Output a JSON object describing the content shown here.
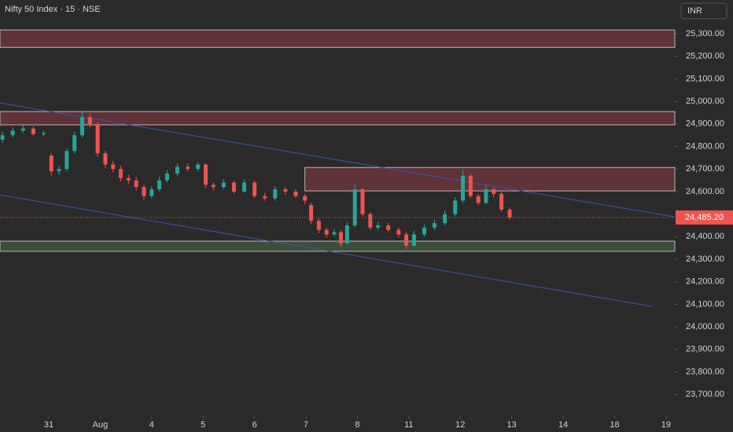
{
  "chart_data": {
    "type": "candlestick",
    "title": "Nifty 50 Index · 15 · NSE",
    "currency": "INR",
    "up_color": "#26a69a",
    "down_color": "#ef5350",
    "xlim": [
      -0.948,
      12.17
    ],
    "ylim": [
      23603,
      25450
    ],
    "xticks": [
      {
        "value": 0,
        "label": "31"
      },
      {
        "value": 1,
        "label": "Aug"
      },
      {
        "value": 2,
        "label": "4"
      },
      {
        "value": 3,
        "label": "5"
      },
      {
        "value": 4,
        "label": "6"
      },
      {
        "value": 5,
        "label": "7"
      },
      {
        "value": 6,
        "label": "8"
      },
      {
        "value": 7,
        "label": "11"
      },
      {
        "value": 8,
        "label": "12"
      },
      {
        "value": 9,
        "label": "13"
      },
      {
        "value": 10,
        "label": "14"
      },
      {
        "value": 11,
        "label": "18"
      },
      {
        "value": 12,
        "label": "19"
      }
    ],
    "yticks": [
      {
        "value": 23700,
        "label": "23,700.00"
      },
      {
        "value": 23800,
        "label": "23,800.00"
      },
      {
        "value": 23900,
        "label": "23,900.00"
      },
      {
        "value": 24000,
        "label": "24,000.00"
      },
      {
        "value": 24100,
        "label": "24,100.00"
      },
      {
        "value": 24200,
        "label": "24,200.00"
      },
      {
        "value": 24300,
        "label": "24,300.00"
      },
      {
        "value": 24400,
        "label": "24,400.00"
      },
      {
        "value": 24500,
        "label": "24,500.00"
      },
      {
        "value": 24600,
        "label": "24,600.00"
      },
      {
        "value": 24700,
        "label": "24,700.00"
      },
      {
        "value": 24800,
        "label": "24,800.00"
      },
      {
        "value": 24900,
        "label": "24,900.00"
      },
      {
        "value": 25000,
        "label": "25,000.00"
      },
      {
        "value": 25100,
        "label": "25,100.00"
      },
      {
        "value": 25200,
        "label": "25,200.00"
      },
      {
        "value": 25300,
        "label": "25,300.00"
      }
    ],
    "x": [
      -0.9,
      -0.7,
      -0.5,
      -0.3,
      -0.1,
      0.05,
      0.2,
      0.35,
      0.5,
      0.65,
      0.8,
      0.95,
      1.1,
      1.25,
      1.4,
      1.55,
      1.7,
      1.85,
      2.0,
      2.15,
      2.3,
      2.5,
      2.7,
      2.9,
      3.05,
      3.2,
      3.4,
      3.6,
      3.8,
      4.0,
      4.2,
      4.4,
      4.6,
      4.8,
      4.98,
      5.1,
      5.25,
      5.4,
      5.55,
      5.68,
      5.8,
      5.95,
      6.1,
      6.25,
      6.4,
      6.6,
      6.8,
      6.95,
      7.1,
      7.3,
      7.5,
      7.7,
      7.9,
      8.05,
      8.2,
      8.35,
      8.5,
      8.65,
      8.8,
      8.96
    ],
    "ohlc": [
      [
        24830,
        24865,
        24815,
        24850
      ],
      [
        24850,
        24885,
        24840,
        24870
      ],
      [
        24870,
        24895,
        24860,
        24880
      ],
      [
        24880,
        24890,
        24845,
        24855
      ],
      [
        24855,
        24870,
        24845,
        24860
      ],
      [
        24760,
        24770,
        24670,
        24690
      ],
      [
        24690,
        24715,
        24675,
        24700
      ],
      [
        24700,
        24790,
        24690,
        24780
      ],
      [
        24780,
        24865,
        24770,
        24850
      ],
      [
        24850,
        24955,
        24840,
        24930
      ],
      [
        24930,
        24945,
        24885,
        24900
      ],
      [
        24900,
        24910,
        24755,
        24770
      ],
      [
        24770,
        24780,
        24705,
        24720
      ],
      [
        24720,
        24735,
        24685,
        24700
      ],
      [
        24700,
        24715,
        24645,
        24660
      ],
      [
        24660,
        24675,
        24635,
        24650
      ],
      [
        24650,
        24665,
        24605,
        24620
      ],
      [
        24620,
        24630,
        24565,
        24580
      ],
      [
        24580,
        24625,
        24570,
        24610
      ],
      [
        24610,
        24665,
        24600,
        24650
      ],
      [
        24650,
        24695,
        24640,
        24680
      ],
      [
        24680,
        24725,
        24670,
        24710
      ],
      [
        24710,
        24725,
        24690,
        24700
      ],
      [
        24700,
        24730,
        24690,
        24720
      ],
      [
        24720,
        24725,
        24615,
        24630
      ],
      [
        24630,
        24640,
        24605,
        24620
      ],
      [
        24620,
        24655,
        24610,
        24640
      ],
      [
        24640,
        24650,
        24590,
        24600
      ],
      [
        24600,
        24655,
        24595,
        24640
      ],
      [
        24640,
        24650,
        24570,
        24580
      ],
      [
        24580,
        24595,
        24560,
        24570
      ],
      [
        24570,
        24625,
        24560,
        24610
      ],
      [
        24610,
        24620,
        24585,
        24600
      ],
      [
        24600,
        24610,
        24570,
        24580
      ],
      [
        24580,
        24590,
        24545,
        24560
      ],
      [
        24540,
        24550,
        24455,
        24470
      ],
      [
        24470,
        24480,
        24415,
        24430
      ],
      [
        24430,
        24440,
        24395,
        24410
      ],
      [
        24410,
        24435,
        24400,
        24420
      ],
      [
        24420,
        24430,
        24355,
        24370
      ],
      [
        24370,
        24465,
        24365,
        24450
      ],
      [
        24450,
        24630,
        24440,
        24610
      ],
      [
        24610,
        24615,
        24490,
        24500
      ],
      [
        24500,
        24510,
        24430,
        24440
      ],
      [
        24440,
        24465,
        24430,
        24450
      ],
      [
        24450,
        24460,
        24420,
        24430
      ],
      [
        24430,
        24440,
        24395,
        24410
      ],
      [
        24410,
        24420,
        24345,
        24360
      ],
      [
        24360,
        24425,
        24355,
        24410
      ],
      [
        24410,
        24455,
        24400,
        24440
      ],
      [
        24440,
        24475,
        24430,
        24460
      ],
      [
        24460,
        24515,
        24450,
        24500
      ],
      [
        24500,
        24575,
        24490,
        24560
      ],
      [
        24560,
        24695,
        24550,
        24670
      ],
      [
        24670,
        24680,
        24570,
        24580
      ],
      [
        24580,
        24590,
        24540,
        24550
      ],
      [
        24550,
        24630,
        24545,
        24610
      ],
      [
        24610,
        24620,
        24575,
        24590
      ],
      [
        24590,
        24600,
        24510,
        24520
      ],
      [
        24520,
        24530,
        24475,
        24485.2
      ]
    ],
    "zones": [
      {
        "y": [
          25240,
          25317
        ],
        "color": "#8b3a44"
      },
      {
        "y": [
          24896,
          24955
        ],
        "color": "#8b3a44"
      },
      {
        "x": [
          4.98,
          12.17
        ],
        "y": [
          24603,
          24707
        ],
        "color": "#8b3a44"
      },
      {
        "y": [
          24335,
          24380
        ],
        "color": "#4a6a45"
      }
    ],
    "trendlines": [
      {
        "x": [
          -0.948,
          12.17
        ],
        "y": [
          24993,
          24488
        ],
        "color": "#3f51b5"
      },
      {
        "x": [
          -0.948,
          11.74
        ],
        "y": [
          24585,
          24090
        ],
        "color": "#3f51b5"
      }
    ],
    "last_price": {
      "value": 24485.2,
      "label": "24,485.20"
    }
  }
}
